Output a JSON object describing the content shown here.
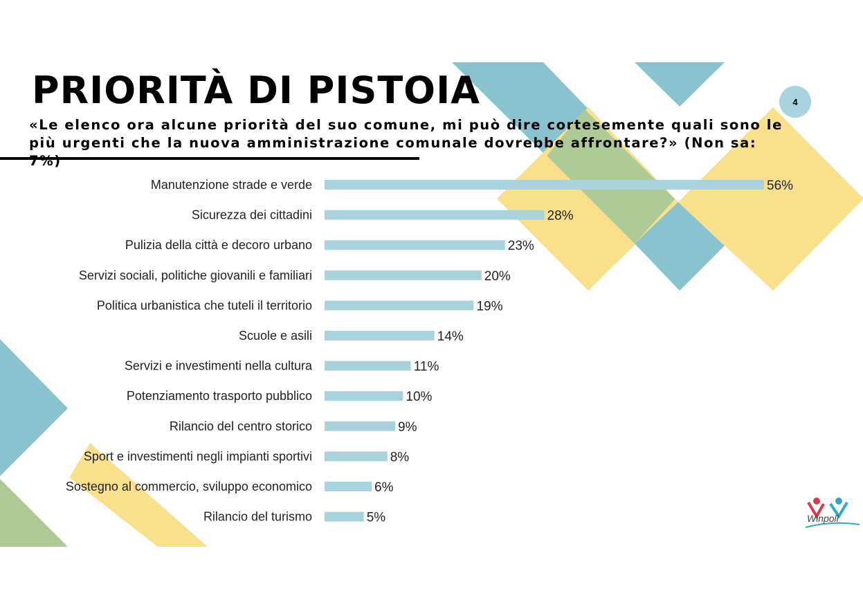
{
  "page": {
    "title": "PRIORITÀ DI PISTOIA",
    "subtitle": "«Le elenco ora alcune priorità del suo comune, mi può dire cortesemente quali sono le più urgenti che la nuova amministrazione comunale dovrebbe affrontare?» (Non sa: 7%)",
    "page_number": "4"
  },
  "brand": {
    "logo_text": "Winpoll"
  },
  "colors": {
    "bar": "#a9d3dc",
    "teal": "#89c3cf",
    "green": "#aecb95",
    "yellow": "#f9e08a"
  },
  "chart_data": {
    "type": "bar",
    "orientation": "horizontal",
    "title": "PRIORITÀ DI PISTOIA",
    "categories": [
      "Manutenzione strade e verde",
      "Sicurezza dei cittadini",
      "Pulizia della città e decoro urbano",
      "Servizi sociali, politiche giovanili e familiari",
      "Politica urbanistica che tuteli il territorio",
      "Scuole e asili",
      "Servizi e investimenti nella cultura",
      "Potenziamento trasporto pubblico",
      "Rilancio del centro storico",
      "Sport e investimenti negli impianti sportivi",
      "Sostegno al commercio, sviluppo economico",
      "Rilancio del turismo"
    ],
    "values": [
      56,
      28,
      23,
      20,
      19,
      14,
      11,
      10,
      9,
      8,
      6,
      5
    ],
    "value_labels": [
      "56%",
      "28%",
      "23%",
      "20%",
      "19%",
      "14%",
      "11%",
      "10%",
      "9%",
      "8%",
      "6%",
      "5%"
    ],
    "unit": "%",
    "xlim": [
      0,
      56
    ],
    "grid": false,
    "legend": "none"
  }
}
